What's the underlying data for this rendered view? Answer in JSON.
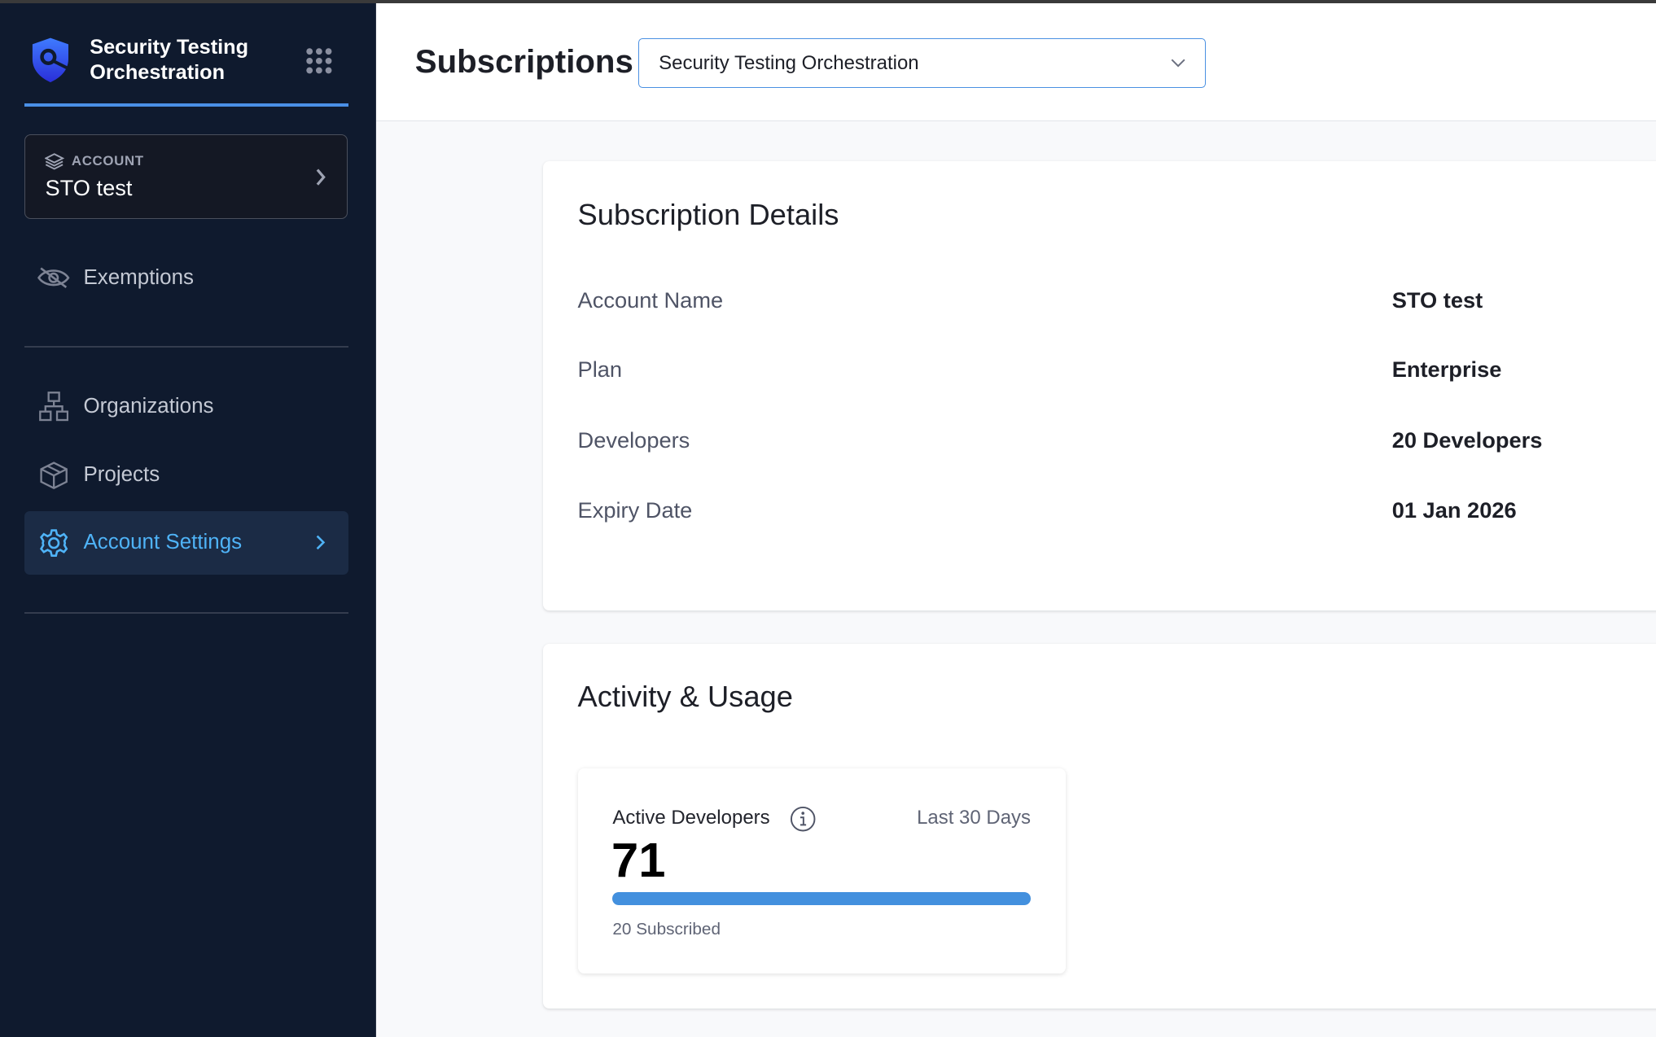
{
  "app": {
    "title": "Security Testing Orchestration",
    "accent": "#4a90e2"
  },
  "sidebar": {
    "account": {
      "label": "ACCOUNT",
      "name": "STO test"
    },
    "items": [
      {
        "label": "Exemptions",
        "icon": "eye-slash-icon"
      },
      {
        "label": "Organizations",
        "icon": "hierarchy-icon"
      },
      {
        "label": "Projects",
        "icon": "cube-icon"
      },
      {
        "label": "Account Settings",
        "icon": "gear-icon",
        "active": true
      }
    ]
  },
  "header": {
    "title": "Subscriptions",
    "module_select": "Security Testing Orchestration"
  },
  "details": {
    "title": "Subscription Details",
    "rows": [
      {
        "label": "Account Name",
        "value": "STO test"
      },
      {
        "label": "Plan",
        "value": "Enterprise"
      },
      {
        "label": "Developers",
        "value": "20 Developers"
      },
      {
        "label": "Expiry Date",
        "value": "01 Jan 2026"
      }
    ]
  },
  "usage": {
    "title": "Activity & Usage",
    "metric": {
      "label": "Active Developers",
      "period": "Last 30 Days",
      "value": "71",
      "subscribed": "20 Subscribed",
      "progress_percent": 100
    }
  }
}
